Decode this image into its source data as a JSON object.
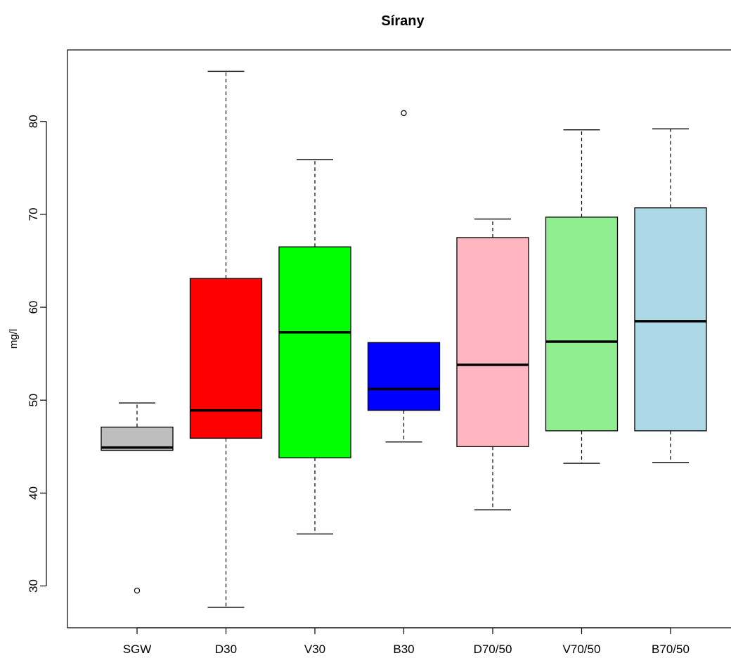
{
  "chart_data": {
    "type": "boxplot",
    "title": "Sírany",
    "xlabel": "",
    "ylabel": "mg/l",
    "ylim": [
      25.5,
      87.7
    ],
    "yticks": [
      30,
      40,
      50,
      60,
      70,
      80
    ],
    "grid": false,
    "legend": "none",
    "categories": [
      "SGW",
      "D30",
      "V30",
      "B30",
      "D70/50",
      "V70/50",
      "B70/50"
    ],
    "boxes": [
      {
        "label": "SGW",
        "color": "#bebebe",
        "whisker_low": 44.6,
        "q1": 44.6,
        "median": 44.9,
        "q3": 47.1,
        "whisker_high": 49.7,
        "outliers": [
          29.5
        ]
      },
      {
        "label": "D30",
        "color": "#ff0000",
        "whisker_low": 27.7,
        "q1": 45.9,
        "median": 48.9,
        "q3": 63.1,
        "whisker_high": 85.4,
        "outliers": []
      },
      {
        "label": "V30",
        "color": "#00ff00",
        "whisker_low": 35.6,
        "q1": 43.8,
        "median": 57.3,
        "q3": 66.5,
        "whisker_high": 75.9,
        "outliers": []
      },
      {
        "label": "B30",
        "color": "#0000ff",
        "whisker_low": 45.5,
        "q1": 48.9,
        "median": 51.2,
        "q3": 56.2,
        "whisker_high": 56.2,
        "outliers": [
          80.9
        ]
      },
      {
        "label": "D70/50",
        "color": "#ffb6c1",
        "whisker_low": 38.2,
        "q1": 45.0,
        "median": 53.8,
        "q3": 67.5,
        "whisker_high": 69.5,
        "outliers": []
      },
      {
        "label": "V70/50",
        "color": "#90ee90",
        "whisker_low": 43.2,
        "q1": 46.7,
        "median": 56.3,
        "q3": 69.7,
        "whisker_high": 79.1,
        "outliers": []
      },
      {
        "label": "B70/50",
        "color": "#add8e6",
        "whisker_low": 43.3,
        "q1": 46.7,
        "median": 58.5,
        "q3": 70.7,
        "whisker_high": 79.2,
        "outliers": []
      }
    ]
  }
}
